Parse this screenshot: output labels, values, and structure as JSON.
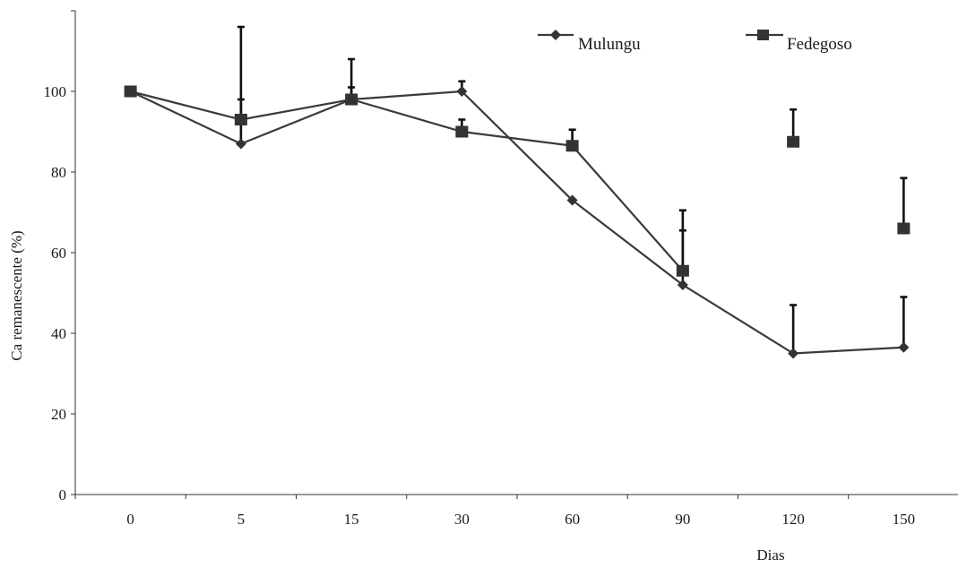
{
  "chart_data": {
    "type": "line",
    "title": "",
    "xlabel": "Dias",
    "ylabel": "Ca remanescente (%)",
    "categories": [
      "0",
      "5",
      "15",
      "30",
      "60",
      "90",
      "120",
      "150"
    ],
    "ylim": [
      0,
      120
    ],
    "yticks": [
      0,
      20,
      40,
      60,
      80,
      100
    ],
    "grid": false,
    "legend": "top-right",
    "series": [
      {
        "name": "Mulungu",
        "marker": "diamond",
        "values": [
          100,
          87,
          98,
          100,
          73,
          52,
          35,
          36.5
        ],
        "error_upper": [
          null,
          98,
          101,
          102.5,
          null,
          65.5,
          47,
          49
        ],
        "connected": [
          true,
          true,
          true,
          true,
          true,
          true,
          true,
          true
        ]
      },
      {
        "name": "Fedegoso",
        "marker": "square",
        "values": [
          100,
          93,
          98,
          90,
          86.5,
          55.5,
          87.5,
          66
        ],
        "error_upper": [
          null,
          116,
          108,
          93,
          90.5,
          70.5,
          95.5,
          78.5
        ],
        "connected": [
          true,
          true,
          true,
          true,
          true,
          true,
          false,
          false
        ]
      }
    ],
    "colors": {
      "line": "#3a3a3a",
      "marker": "#333333",
      "error_bar": "#111111",
      "axis": "#333333"
    }
  }
}
